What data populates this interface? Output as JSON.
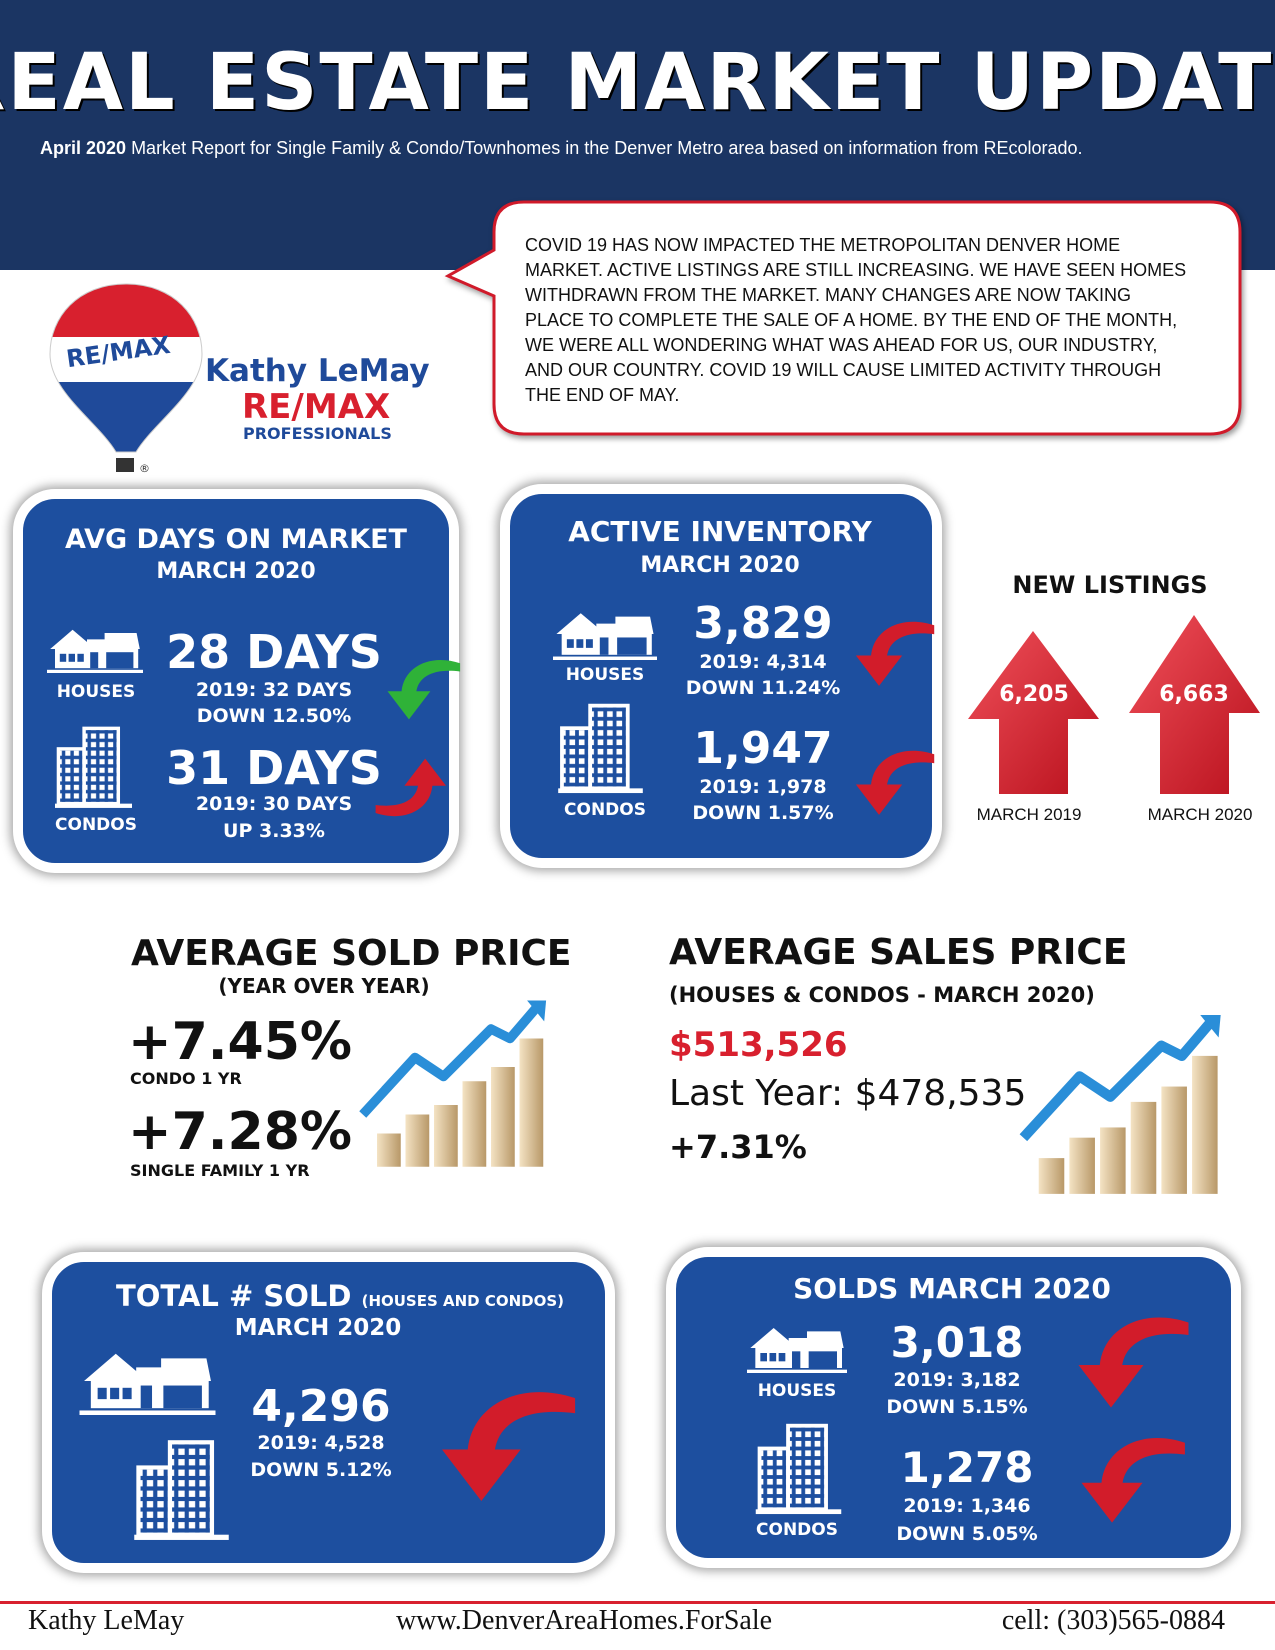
{
  "header": {
    "title": "REAL ESTATE MARKET UPDATE",
    "subtitle_bold": "April 2020",
    "subtitle": "Market Report for Single Family & Condo/Townhomes in the Denver Metro area based on information from REcolorado."
  },
  "callout": {
    "lines": [
      "COVID 19 HAS NOW IMPACTED THE METROPOLITAN DENVER HOME",
      "MARKET.  ACTIVE LISTINGS ARE STILL INCREASING.  WE HAVE SEEN HOMES",
      "WITHDRAWN FROM THE MARKET.  MANY CHANGES ARE NOW TAKING",
      "PLACE TO COMPLETE THE SALE OF A HOME.  BY THE END OF THE MONTH,",
      "WE WERE ALL WONDERING WHAT WAS AHEAD FOR US, OUR INDUSTRY,",
      "AND OUR COUNTRY.  COVID 19 WILL CAUSE LIMITED ACTIVITY THROUGH",
      "THE END OF MAY."
    ]
  },
  "logo": {
    "balloon_text": "RE/MAX",
    "registered": "®",
    "agent": "Kathy LeMay",
    "brand": "RE/MAX",
    "office": "PROFESSIONALS"
  },
  "avg_days": {
    "title": "AVG DAYS ON MARKET",
    "period": "MARCH 2020",
    "houses": {
      "label": "HOUSES",
      "value": "28 DAYS",
      "prior": "2019: 32 DAYS",
      "change": "DOWN 12.50%"
    },
    "condos": {
      "label": "CONDOS",
      "value": "31 DAYS",
      "prior": "2019: 30 DAYS",
      "change": "UP 3.33%"
    }
  },
  "active_inventory": {
    "title": "ACTIVE INVENTORY",
    "period": "MARCH 2020",
    "houses": {
      "label": "HOUSES",
      "value": "3,829",
      "prior": "2019: 4,314",
      "change": "DOWN 11.24%"
    },
    "condos": {
      "label": "CONDOS",
      "value": "1,947",
      "prior": "2019: 1,978",
      "change": "DOWN 1.57%"
    }
  },
  "new_listings": {
    "title": "NEW LISTINGS",
    "items": [
      {
        "value": "6,205",
        "label": "MARCH 2019"
      },
      {
        "value": "6,663",
        "label": "MARCH 2020"
      }
    ]
  },
  "avg_sold_price": {
    "title": "AVERAGE SOLD PRICE",
    "subtitle": "(YEAR OVER YEAR)",
    "items": [
      {
        "value": "+7.45%",
        "label": "CONDO 1 YR"
      },
      {
        "value": "+7.28%",
        "label": "SINGLE FAMILY 1 YR"
      }
    ]
  },
  "avg_sales_price": {
    "title": "AVERAGE SALES PRICE",
    "subtitle": "(HOUSES & CONDOS - MARCH 2020)",
    "current": "$513,526",
    "last_year": "Last Year: $478,535",
    "change": "+7.31%"
  },
  "total_sold": {
    "title": "TOTAL # SOLD",
    "title_note": "(HOUSES AND CONDOS)",
    "period": "MARCH 2020",
    "value": "4,296",
    "prior": "2019: 4,528",
    "change": "DOWN 5.12%"
  },
  "solds": {
    "title": "SOLDS MARCH 2020",
    "houses": {
      "label": "HOUSES",
      "value": "3,018",
      "prior": "2019: 3,182",
      "change": "DOWN 5.15%"
    },
    "condos": {
      "label": "CONDOS",
      "value": "1,278",
      "prior": "2019: 1,346",
      "change": "DOWN 5.05%"
    }
  },
  "footer": {
    "name": "Kathy LeMay",
    "website": "www.DenverAreaHomes.ForSale",
    "phone": "cell: (303)565-0884"
  }
}
